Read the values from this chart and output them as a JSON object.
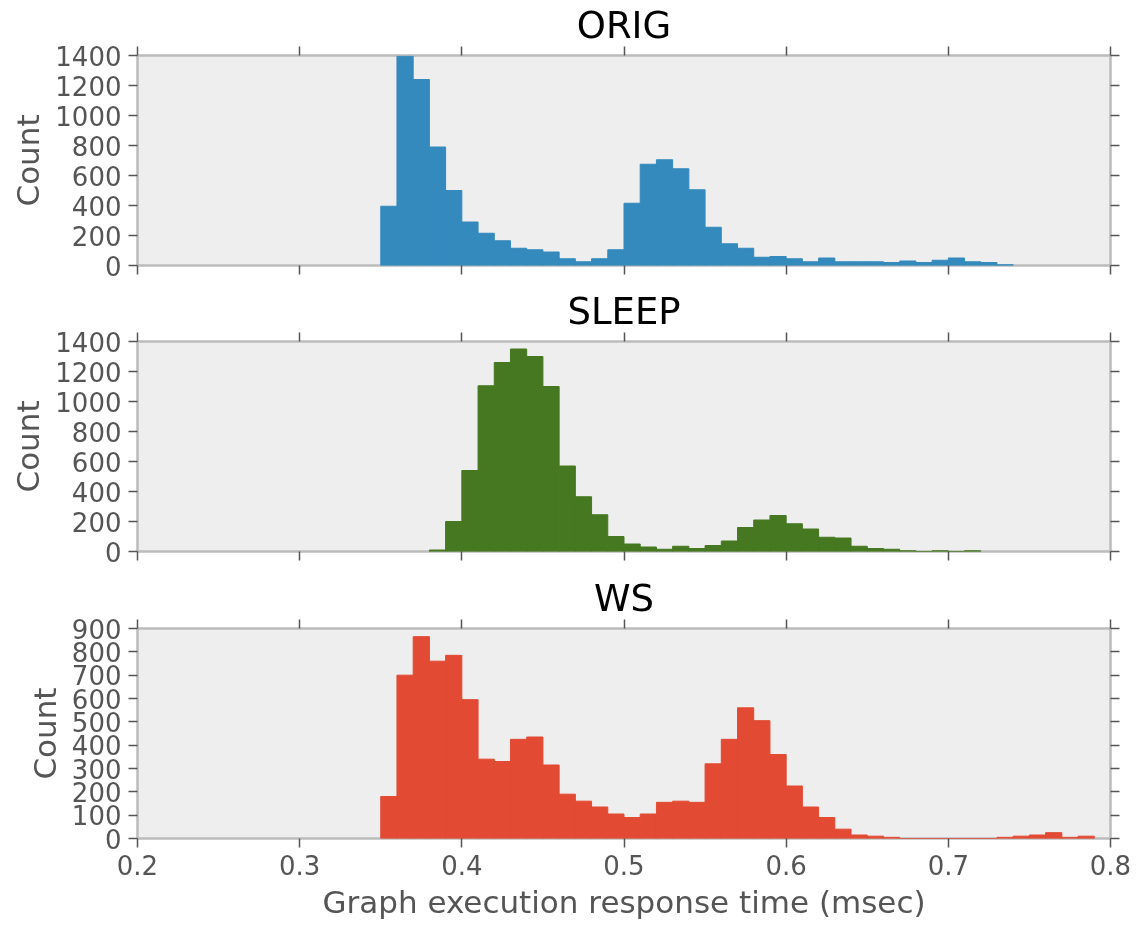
{
  "chart_data": [
    {
      "type": "histogram",
      "title": "ORIG",
      "ylabel": "Count",
      "color": "#348abd",
      "tick_labels": "y",
      "bins": [
        0.35,
        0.36,
        0.37,
        0.38,
        0.39,
        0.4,
        0.41,
        0.42,
        0.43,
        0.44,
        0.45,
        0.46,
        0.47,
        0.48,
        0.49,
        0.5,
        0.51,
        0.52,
        0.53,
        0.54,
        0.55,
        0.56,
        0.57,
        0.58,
        0.59,
        0.6,
        0.61,
        0.62,
        0.63,
        0.64,
        0.65,
        0.66,
        0.67,
        0.68,
        0.69,
        0.7,
        0.71,
        0.72,
        0.73,
        0.74
      ],
      "values": [
        395,
        1395,
        1240,
        790,
        500,
        290,
        215,
        165,
        115,
        105,
        90,
        45,
        25,
        45,
        105,
        415,
        675,
        705,
        645,
        505,
        255,
        145,
        115,
        55,
        60,
        45,
        25,
        50,
        25,
        25,
        25,
        20,
        30,
        20,
        35,
        50,
        25,
        20,
        5
      ],
      "xlim": [
        0.2,
        0.8
      ],
      "xticks": [
        0.2,
        0.3,
        0.4,
        0.5,
        0.6,
        0.7,
        0.8
      ],
      "ylim": [
        0,
        1400
      ],
      "yticks": [
        0,
        200,
        400,
        600,
        800,
        1000,
        1200,
        1400
      ]
    },
    {
      "type": "histogram",
      "title": "SLEEP",
      "ylabel": "Count",
      "color": "#467821",
      "tick_labels": "y",
      "bins": [
        0.38,
        0.39,
        0.4,
        0.41,
        0.42,
        0.43,
        0.44,
        0.45,
        0.46,
        0.47,
        0.48,
        0.49,
        0.5,
        0.51,
        0.52,
        0.53,
        0.54,
        0.55,
        0.56,
        0.57,
        0.58,
        0.59,
        0.6,
        0.61,
        0.62,
        0.63,
        0.64,
        0.65,
        0.66,
        0.67,
        0.68,
        0.69,
        0.7,
        0.71,
        0.72
      ],
      "values": [
        10,
        200,
        540,
        1105,
        1260,
        1350,
        1300,
        1100,
        570,
        365,
        245,
        100,
        50,
        30,
        15,
        35,
        20,
        40,
        70,
        160,
        210,
        240,
        185,
        150,
        95,
        90,
        35,
        20,
        15,
        5,
        0,
        5,
        0,
        5
      ],
      "xlim": [
        0.2,
        0.8
      ],
      "xticks": [
        0.2,
        0.3,
        0.4,
        0.5,
        0.6,
        0.7,
        0.8
      ],
      "ylim": [
        0,
        1400
      ],
      "yticks": [
        0,
        200,
        400,
        600,
        800,
        1000,
        1200,
        1400
      ]
    },
    {
      "type": "histogram",
      "title": "WS",
      "ylabel": "Count",
      "xlabel": "Graph execution response time (msec)",
      "color": "#e24a33",
      "bins": [
        0.35,
        0.36,
        0.37,
        0.38,
        0.39,
        0.4,
        0.41,
        0.42,
        0.43,
        0.44,
        0.45,
        0.46,
        0.47,
        0.48,
        0.49,
        0.5,
        0.51,
        0.52,
        0.53,
        0.54,
        0.55,
        0.56,
        0.57,
        0.58,
        0.59,
        0.6,
        0.61,
        0.62,
        0.63,
        0.64,
        0.65,
        0.66,
        0.67,
        0.68,
        0.69,
        0.7,
        0.71,
        0.72,
        0.73,
        0.74,
        0.75,
        0.76,
        0.77,
        0.78,
        0.79
      ],
      "values": [
        180,
        700,
        865,
        760,
        785,
        595,
        340,
        330,
        425,
        435,
        315,
        190,
        160,
        135,
        105,
        90,
        105,
        155,
        160,
        155,
        320,
        425,
        560,
        505,
        360,
        225,
        135,
        90,
        40,
        15,
        10,
        5,
        0,
        0,
        0,
        0,
        0,
        0,
        5,
        10,
        15,
        25,
        5,
        10
      ],
      "xlim": [
        0.2,
        0.8
      ],
      "xticks": [
        0.2,
        0.3,
        0.4,
        0.5,
        0.6,
        0.7,
        0.8
      ],
      "ylim": [
        0,
        900
      ],
      "yticks": [
        0,
        100,
        200,
        300,
        400,
        500,
        600,
        700,
        800,
        900
      ]
    }
  ]
}
